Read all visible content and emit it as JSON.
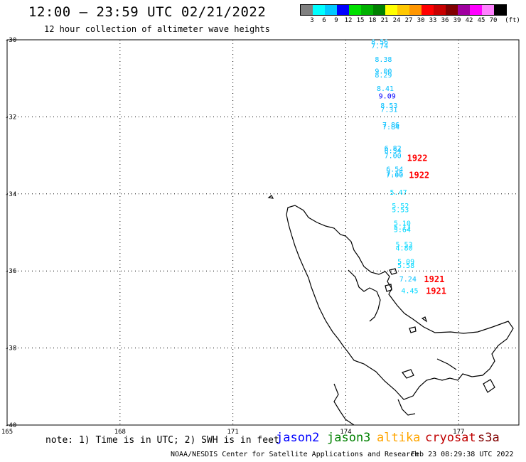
{
  "header": {
    "title": "12:00 — 23:59 UTC 02/21/2022",
    "subtitle": "12 hour collection of altimeter wave heights"
  },
  "legend": {
    "unit": "(ft)",
    "labels": [
      "3",
      "6",
      "9",
      "12",
      "15",
      "18",
      "21",
      "24",
      "27",
      "30",
      "33",
      "36",
      "39",
      "42",
      "45",
      "70"
    ],
    "colors": [
      "#808080",
      "#00ffff",
      "#00c8ff",
      "#0000ff",
      "#00e000",
      "#00b000",
      "#008000",
      "#ffff00",
      "#ffc800",
      "#ff9600",
      "#ff0000",
      "#c80000",
      "#800000",
      "#a000a0",
      "#ff00ff",
      "#ff80ff",
      "#000000"
    ]
  },
  "map": {
    "lon_ticks": [
      "165",
      "168",
      "171",
      "174",
      "177"
    ],
    "lat_ticks": [
      "-30",
      "-32",
      "-34",
      "-36",
      "-38",
      "-40"
    ],
    "observations": [
      {
        "lon": 174.9,
        "lat": -30.05,
        "value": "8.56",
        "color": "#00bfff"
      },
      {
        "lon": 174.9,
        "lat": -30.15,
        "value": "7.74",
        "color": "#00bfff"
      },
      {
        "lon": 175.0,
        "lat": -30.5,
        "value": "8.38",
        "color": "#00bfff"
      },
      {
        "lon": 175.0,
        "lat": -30.8,
        "value": "9.00",
        "color": "#00bfff"
      },
      {
        "lon": 175.0,
        "lat": -30.9,
        "value": "8.29",
        "color": "#00bfff"
      },
      {
        "lon": 175.05,
        "lat": -31.25,
        "value": "8.41",
        "color": "#00bfff"
      },
      {
        "lon": 175.1,
        "lat": -31.45,
        "value": "9.09",
        "color": "#0000ff"
      },
      {
        "lon": 175.15,
        "lat": -31.7,
        "value": "8.53",
        "color": "#00bfff"
      },
      {
        "lon": 175.15,
        "lat": -31.8,
        "value": "7.31",
        "color": "#00bfff"
      },
      {
        "lon": 175.2,
        "lat": -32.2,
        "value": "7.86",
        "color": "#00bfff"
      },
      {
        "lon": 175.2,
        "lat": -32.25,
        "value": "7.84",
        "color": "#00bfff"
      },
      {
        "lon": 175.25,
        "lat": -32.8,
        "value": "6.82",
        "color": "#00bfff"
      },
      {
        "lon": 175.25,
        "lat": -32.87,
        "value": "6.54",
        "color": "#00bfff"
      },
      {
        "lon": 175.25,
        "lat": -33.0,
        "value": "7.00",
        "color": "#00bfff"
      },
      {
        "lon": 175.3,
        "lat": -33.35,
        "value": "6.54",
        "color": "#00bfff"
      },
      {
        "lon": 175.3,
        "lat": -33.45,
        "value": "7.15",
        "color": "#00bfff"
      },
      {
        "lon": 175.3,
        "lat": -33.5,
        "value": "7.00",
        "color": "#00bfff"
      },
      {
        "lon": 175.4,
        "lat": -33.95,
        "value": "5.47",
        "color": "#00d8ff"
      },
      {
        "lon": 175.45,
        "lat": -34.3,
        "value": "5.52",
        "color": "#00d8ff"
      },
      {
        "lon": 175.45,
        "lat": -34.4,
        "value": "5.53",
        "color": "#00d8ff"
      },
      {
        "lon": 175.5,
        "lat": -34.75,
        "value": "5.10",
        "color": "#00d8ff"
      },
      {
        "lon": 175.5,
        "lat": -34.85,
        "value": "5.13",
        "color": "#00d8ff"
      },
      {
        "lon": 175.5,
        "lat": -34.92,
        "value": "5.64",
        "color": "#00d8ff"
      },
      {
        "lon": 175.55,
        "lat": -35.3,
        "value": "5.53",
        "color": "#00d8ff"
      },
      {
        "lon": 175.55,
        "lat": -35.4,
        "value": "4.80",
        "color": "#00d8ff"
      },
      {
        "lon": 175.6,
        "lat": -35.75,
        "value": "5.09",
        "color": "#00d8ff"
      },
      {
        "lon": 175.6,
        "lat": -35.85,
        "value": "5.58",
        "color": "#00d8ff"
      },
      {
        "lon": 175.65,
        "lat": -36.2,
        "value": "7.24",
        "color": "#00bfff"
      },
      {
        "lon": 175.7,
        "lat": -36.5,
        "value": "4.45",
        "color": "#00d8ff"
      }
    ],
    "pass_labels": [
      {
        "lon": 175.9,
        "lat": -33.05,
        "text": "1922"
      },
      {
        "lon": 175.95,
        "lat": -33.5,
        "text": "1922"
      },
      {
        "lon": 176.35,
        "lat": -36.2,
        "text": "1921"
      },
      {
        "lon": 176.4,
        "lat": -36.5,
        "text": "1921"
      }
    ]
  },
  "footer": {
    "note": "note: 1) Time is in UTC; 2) SWH is in feet",
    "satellites": [
      {
        "name": "jason2",
        "color": "#0000ff"
      },
      {
        "name": "jason3",
        "color": "#008000"
      },
      {
        "name": "altika",
        "color": "#ffa500"
      },
      {
        "name": "cryosat",
        "color": "#c00000"
      },
      {
        "name": "s3a",
        "color": "#800000"
      }
    ],
    "credit": "NOAA/NESDIS Center for Satellite Applications and Research",
    "timestamp": "Feb 23 08:29:38 UTC 2022"
  }
}
